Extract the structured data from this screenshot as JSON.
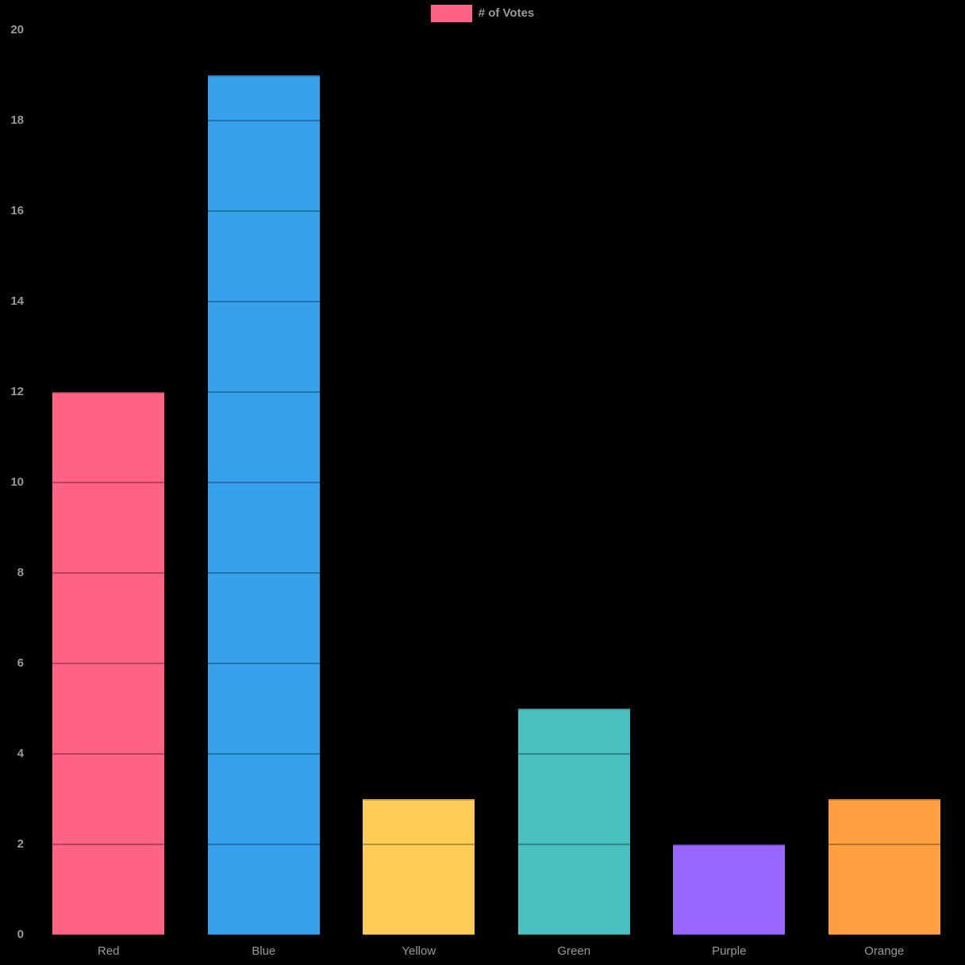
{
  "legend": {
    "label": "# of Votes",
    "swatch_color": "#FF6384"
  },
  "chart_data": {
    "type": "bar",
    "title": "",
    "xlabel": "",
    "ylabel": "",
    "categories": [
      "Red",
      "Blue",
      "Yellow",
      "Green",
      "Purple",
      "Orange"
    ],
    "series": [
      {
        "name": "# of Votes",
        "values": [
          12,
          19,
          3,
          5,
          2,
          3
        ]
      }
    ],
    "bar_colors": [
      "#FF6384",
      "#36A2EB",
      "#FFCD56",
      "#4BC0C0",
      "#9966FF",
      "#FF9F40"
    ],
    "ylim": [
      0,
      20
    ],
    "ytick_step": 2,
    "yticks": [
      0,
      2,
      4,
      6,
      8,
      10,
      12,
      14,
      16,
      18,
      20
    ],
    "grid": true,
    "legend_position": "top",
    "background_color": "#000000",
    "tick_label_color": "#999999"
  }
}
